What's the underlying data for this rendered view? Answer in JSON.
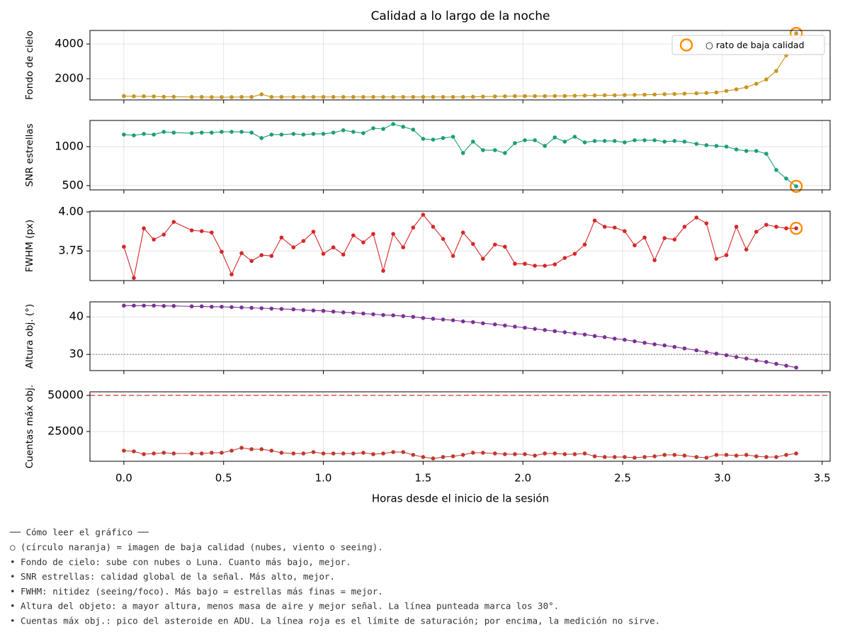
{
  "chart_data": {
    "type": "line",
    "title": "Calidad a lo largo de la noche",
    "xlabel": "Horas desde el inicio de la sesión",
    "xlim": [
      -0.17,
      3.54
    ],
    "xticks": [
      {
        "value": 0,
        "label": "0.0"
      },
      0.5,
      {
        "value": 1,
        "label": "1.0"
      },
      1.5,
      {
        "value": 2,
        "label": "2.0"
      },
      2.5,
      {
        "value": 3,
        "label": "3.0"
      },
      3.5
    ],
    "grid": true,
    "x": [
      0,
      0.05,
      0.1,
      0.15,
      0.2,
      0.25,
      0.34,
      0.39,
      0.44,
      0.49,
      0.54,
      0.59,
      0.64,
      0.69,
      0.74,
      0.79,
      0.85,
      0.9,
      0.95,
      1,
      1.05,
      1.1,
      1.15,
      1.2,
      1.25,
      1.3,
      1.35,
      1.4,
      1.45,
      1.5,
      1.55,
      1.6,
      1.65,
      1.7,
      1.75,
      1.8,
      1.86,
      1.91,
      1.96,
      2.01,
      2.06,
      2.11,
      2.16,
      2.21,
      2.26,
      2.31,
      2.36,
      2.41,
      2.46,
      2.51,
      2.56,
      2.61,
      2.66,
      2.71,
      2.76,
      2.81,
      2.87,
      2.92,
      2.97,
      3.02,
      3.07,
      3.12,
      3.17,
      3.22,
      3.27,
      3.32,
      3.37
    ],
    "highlight": {
      "name": "○ rato de baja calidad",
      "color": "#ff8c00",
      "x": [
        3.37
      ]
    },
    "legend": "upper right",
    "panels": [
      {
        "ylabel": "Fondo de cielo",
        "color": "#c8951e",
        "ylim": [
          780,
          4780
        ],
        "yticks": [
          2000,
          4000
        ],
        "highlighted": true,
        "legend": true,
        "values": [
          1000,
          990,
          990,
          980,
          960,
          960,
          950,
          950,
          940,
          940,
          940,
          950,
          950,
          1100,
          950,
          950,
          950,
          950,
          950,
          950,
          950,
          950,
          950,
          950,
          950,
          950,
          950,
          950,
          950,
          950,
          950,
          950,
          950,
          950,
          960,
          970,
          980,
          990,
          1000,
          1000,
          1000,
          1000,
          1010,
          1010,
          1020,
          1030,
          1040,
          1050,
          1050,
          1060,
          1070,
          1080,
          1090,
          1110,
          1120,
          1140,
          1160,
          1180,
          1210,
          1300,
          1390,
          1510,
          1710,
          1960,
          2450,
          3350,
          4610
        ]
      },
      {
        "ylabel": "SNR estrellas",
        "color": "#1b9e77",
        "ylim": [
          445,
          1336
        ],
        "yticks": [
          500,
          1000
        ],
        "highlighted": true,
        "values": [
          1155,
          1145,
          1164,
          1155,
          1190,
          1180,
          1173,
          1180,
          1180,
          1190,
          1190,
          1190,
          1180,
          1110,
          1155,
          1155,
          1164,
          1155,
          1164,
          1164,
          1180,
          1210,
          1190,
          1173,
          1236,
          1227,
          1290,
          1255,
          1218,
          1100,
          1090,
          1110,
          1127,
          918,
          1064,
          955,
          955,
          918,
          1045,
          1082,
          1082,
          1009,
          1118,
          1064,
          1127,
          1055,
          1073,
          1073,
          1073,
          1055,
          1082,
          1082,
          1082,
          1064,
          1073,
          1064,
          1036,
          1018,
          1009,
          1000,
          964,
          945,
          945,
          909,
          700,
          591,
          491
        ]
      },
      {
        "ylabel": "FWHM (px)",
        "color": "#d62728",
        "ylim": [
          3.56,
          4.005
        ],
        "yticks": [
          3.75,
          {
            "value": 4,
            "label": "4.00"
          }
        ],
        "highlighted": true,
        "values": [
          3.777,
          3.577,
          3.895,
          3.823,
          3.855,
          3.936,
          3.882,
          3.877,
          3.868,
          3.745,
          3.6,
          3.736,
          3.686,
          3.723,
          3.718,
          3.836,
          3.773,
          3.814,
          3.873,
          3.732,
          3.773,
          3.727,
          3.85,
          3.805,
          3.859,
          3.623,
          3.859,
          3.773,
          3.9,
          3.982,
          3.905,
          3.827,
          3.718,
          3.868,
          3.795,
          3.7,
          3.791,
          3.777,
          3.668,
          3.668,
          3.655,
          3.655,
          3.664,
          3.705,
          3.732,
          3.791,
          3.945,
          3.905,
          3.9,
          3.877,
          3.786,
          3.836,
          3.691,
          3.832,
          3.823,
          3.905,
          3.964,
          3.927,
          3.7,
          3.723,
          3.905,
          3.759,
          3.873,
          3.918,
          3.905,
          3.895,
          3.895
        ]
      },
      {
        "ylabel": "Altura obj. (°)",
        "color": "#7b3294",
        "ylim": [
          25.7,
          44
        ],
        "yticks": [
          30,
          40
        ],
        "highlighted": false,
        "hline": {
          "value": 30,
          "style": "dotted",
          "color": "#888888"
        },
        "values": [
          43.0,
          43.0,
          43.0,
          43.0,
          42.9,
          42.9,
          42.8,
          42.8,
          42.7,
          42.7,
          42.6,
          42.5,
          42.4,
          42.3,
          42.2,
          42.1,
          42.0,
          41.8,
          41.7,
          41.6,
          41.4,
          41.2,
          41.1,
          40.9,
          40.7,
          40.5,
          40.4,
          40.2,
          40.0,
          39.7,
          39.5,
          39.3,
          39.1,
          38.8,
          38.6,
          38.3,
          38.0,
          37.7,
          37.4,
          37.1,
          36.8,
          36.5,
          36.2,
          35.9,
          35.6,
          35.3,
          34.9,
          34.6,
          34.2,
          33.9,
          33.5,
          33.1,
          32.7,
          32.4,
          32.0,
          31.6,
          31.1,
          30.6,
          30.2,
          29.8,
          29.3,
          28.9,
          28.4,
          28.0,
          27.5,
          27.0,
          26.5
        ]
      },
      {
        "ylabel": "Cuentas máx obj.",
        "color": "#c0392b",
        "ylim": [
          4400,
          52450
        ],
        "yticks": [
          25000,
          50000
        ],
        "highlighted": false,
        "hline": {
          "value": 50000,
          "style": "dashed",
          "color": "#d9534f"
        },
        "values": [
          11760,
          11270,
          9310,
          9800,
          10290,
          9800,
          9800,
          9800,
          10290,
          10290,
          11760,
          13730,
          12750,
          12750,
          11760,
          10290,
          9800,
          9800,
          10780,
          9800,
          9800,
          9800,
          9800,
          10290,
          9310,
          9800,
          10780,
          10780,
          8820,
          7350,
          6370,
          7350,
          7840,
          8820,
          10290,
          10290,
          9800,
          9310,
          9310,
          9310,
          8330,
          9800,
          9800,
          9310,
          9310,
          9800,
          7840,
          7350,
          7350,
          7350,
          6860,
          7350,
          7840,
          8820,
          8820,
          8330,
          7350,
          6860,
          8820,
          8820,
          8330,
          8820,
          7840,
          7350,
          7350,
          8820,
          9800
        ]
      }
    ]
  },
  "notes": {
    "title": "── Cómo leer el gráfico ──",
    "lines": [
      "○ (círculo naranja) = imagen de baja calidad (nubes, viento o seeing).",
      "• Fondo de cielo: sube con nubes o Luna. Cuanto más bajo, mejor.",
      "• SNR estrellas: calidad global de la señal. Más alto, mejor.",
      "• FWHM: nitidez (seeing/foco). Más bajo = estrellas más finas = mejor.",
      "• Altura del objeto: a mayor altura, menos masa de aire y mejor señal. La línea punteada marca los 30°.",
      "• Cuentas máx obj.: pico del asteroide en ADU. La línea roja es el límite de saturación; por encima, la medición no sirve."
    ]
  }
}
